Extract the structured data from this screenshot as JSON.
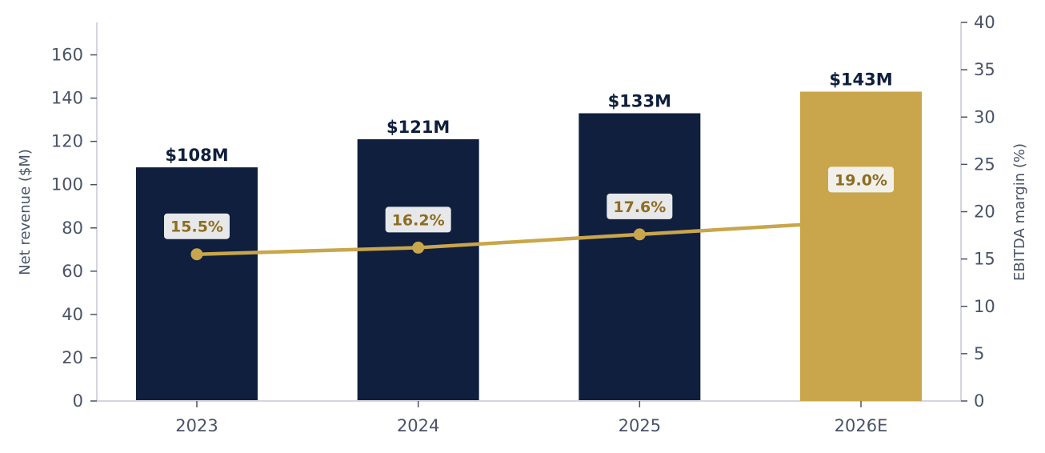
{
  "chart_data": {
    "type": "bar",
    "title": "",
    "categories": [
      "2023",
      "2024",
      "2025",
      "2026E"
    ],
    "series": [
      {
        "type": "bar",
        "axis": "left",
        "values": [
          108,
          121,
          133,
          143
        ],
        "labels": [
          "$108M",
          "$121M",
          "$133M",
          "$143M"
        ],
        "colors": [
          "#0f1f3d",
          "#0f1f3d",
          "#0f1f3d",
          "#c9a64b"
        ]
      },
      {
        "type": "line",
        "axis": "right",
        "values": [
          15.5,
          16.2,
          17.6,
          19.0
        ],
        "labels": [
          "15.5%",
          "16.2%",
          "17.6%",
          "19.0%"
        ],
        "color": "#c9a64b"
      }
    ],
    "ylabel": "Net revenue ($M)",
    "y2label": "EBITDA margin (%)",
    "ylim": [
      0,
      175
    ],
    "y2lim": [
      0,
      40
    ],
    "yticks": [
      "0",
      "20",
      "40",
      "60",
      "80",
      "100",
      "120",
      "140",
      "160"
    ],
    "y2ticks": [
      "0",
      "5",
      "10",
      "15",
      "20",
      "25",
      "30",
      "35",
      "40"
    ],
    "grid": false,
    "colors": {
      "bar": "#0f1f3d",
      "forecast_bar": "#c9a64b",
      "line": "#c9a64b",
      "axis": "#d5d5e0",
      "label_box": "#f3f3f3"
    }
  }
}
